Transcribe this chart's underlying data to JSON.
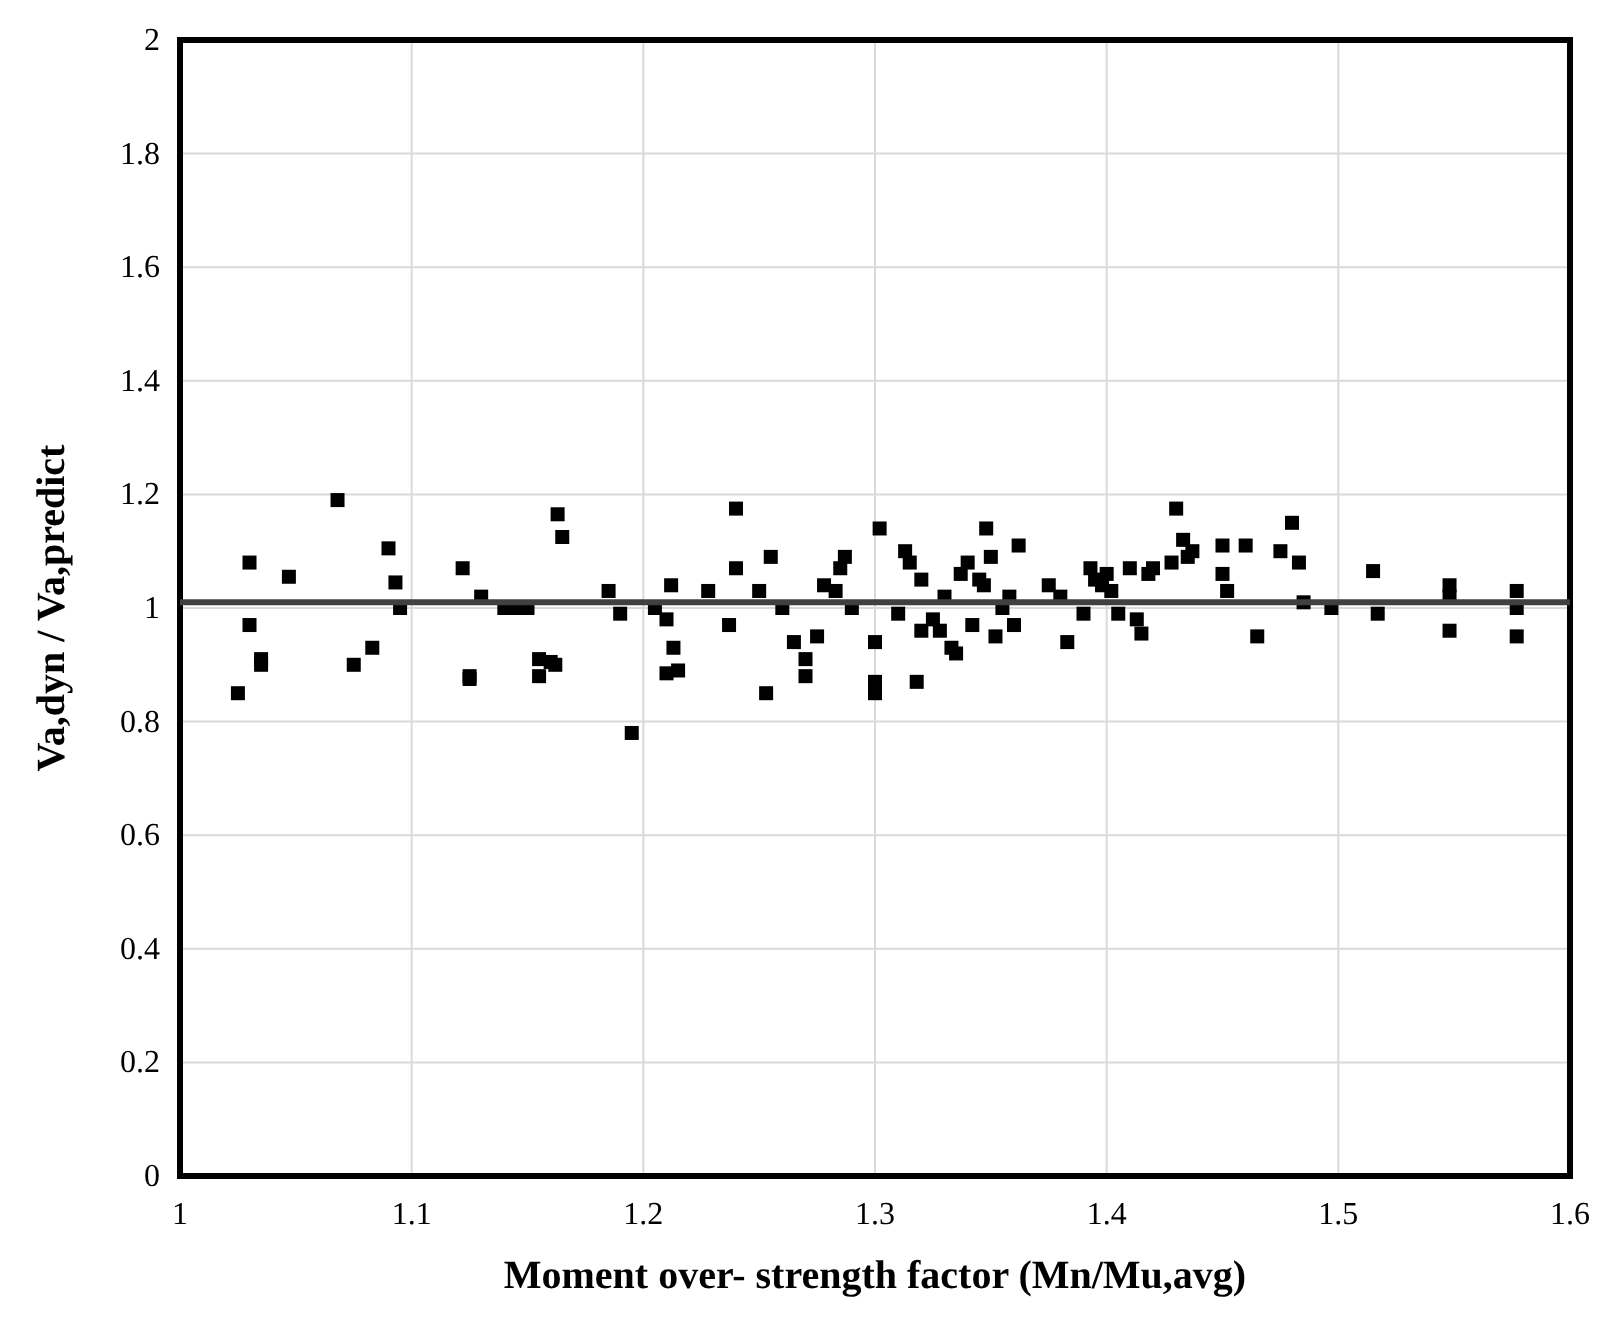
{
  "chart_data": {
    "type": "scatter",
    "xlabel": "Moment over- strength factor (Mn/Mu,avg)",
    "ylabel": "Va,dyn / Va,predict",
    "xlim": [
      1,
      1.6
    ],
    "xticks": [
      1,
      1.1,
      1.2,
      1.3,
      1.4,
      1.5,
      1.6
    ],
    "ylim": [
      0,
      2
    ],
    "yticks": [
      0,
      0.2,
      0.4,
      0.6,
      0.8,
      1,
      1.2,
      1.4,
      1.6,
      1.8,
      2
    ],
    "grid": true,
    "marker": "square",
    "series": [
      {
        "color": "#000000",
        "x": [
          1.025,
          1.03,
          1.03,
          1.035,
          1.035,
          1.047,
          1.068,
          1.075,
          1.083,
          1.09,
          1.093,
          1.095,
          1.122,
          1.125,
          1.125,
          1.13,
          1.14,
          1.145,
          1.15,
          1.155,
          1.155,
          1.16,
          1.162,
          1.163,
          1.165,
          1.185,
          1.19,
          1.195,
          1.205,
          1.21,
          1.21,
          1.212,
          1.213,
          1.215,
          1.228,
          1.237,
          1.24,
          1.24,
          1.25,
          1.253,
          1.255,
          1.26,
          1.265,
          1.27,
          1.27,
          1.275,
          1.278,
          1.283,
          1.285,
          1.287,
          1.29,
          1.3,
          1.3,
          1.3,
          1.302,
          1.31,
          1.313,
          1.315,
          1.318,
          1.32,
          1.32,
          1.325,
          1.328,
          1.33,
          1.333,
          1.335,
          1.337,
          1.34,
          1.342,
          1.345,
          1.347,
          1.348,
          1.35,
          1.352,
          1.355,
          1.358,
          1.36,
          1.362,
          1.375,
          1.38,
          1.383,
          1.39,
          1.393,
          1.395,
          1.398,
          1.4,
          1.402,
          1.405,
          1.41,
          1.413,
          1.415,
          1.418,
          1.42,
          1.428,
          1.43,
          1.433,
          1.435,
          1.437,
          1.45,
          1.45,
          1.452,
          1.46,
          1.465,
          1.475,
          1.48,
          1.483,
          1.485,
          1.497,
          1.515,
          1.517,
          1.548,
          1.548,
          1.548,
          1.577,
          1.577,
          1.577
        ],
        "values": [
          0.85,
          1.08,
          0.97,
          0.91,
          0.9,
          1.055,
          1.19,
          0.9,
          0.93,
          1.105,
          1.045,
          1.0,
          1.07,
          0.88,
          0.875,
          1.02,
          1.0,
          1.0,
          1.0,
          0.91,
          0.88,
          0.905,
          0.9,
          1.165,
          1.125,
          1.03,
          0.99,
          0.78,
          1.0,
          0.885,
          0.98,
          1.04,
          0.93,
          0.89,
          1.03,
          0.97,
          1.175,
          1.07,
          1.03,
          0.85,
          1.09,
          1.0,
          0.94,
          0.91,
          0.88,
          0.95,
          1.04,
          1.03,
          1.07,
          1.09,
          1.0,
          0.94,
          0.87,
          0.85,
          1.14,
          0.99,
          1.1,
          1.08,
          0.87,
          1.05,
          0.96,
          0.98,
          0.96,
          1.02,
          0.93,
          0.92,
          1.06,
          1.08,
          0.97,
          1.05,
          1.04,
          1.14,
          1.09,
          0.95,
          1.0,
          1.02,
          0.97,
          1.11,
          1.04,
          1.02,
          0.94,
          0.99,
          1.07,
          1.05,
          1.04,
          1.06,
          1.03,
          0.99,
          1.07,
          0.98,
          0.955,
          1.06,
          1.07,
          1.08,
          1.175,
          1.12,
          1.09,
          1.1,
          1.11,
          1.06,
          1.03,
          1.11,
          0.95,
          1.1,
          1.15,
          1.08,
          1.01,
          1.0,
          1.065,
          0.99,
          1.04,
          1.02,
          0.96,
          1.03,
          1.0,
          0.95
        ]
      }
    ],
    "ref_lines": [
      {
        "axis": "y",
        "value": 1.01,
        "color": "#404040"
      }
    ]
  }
}
